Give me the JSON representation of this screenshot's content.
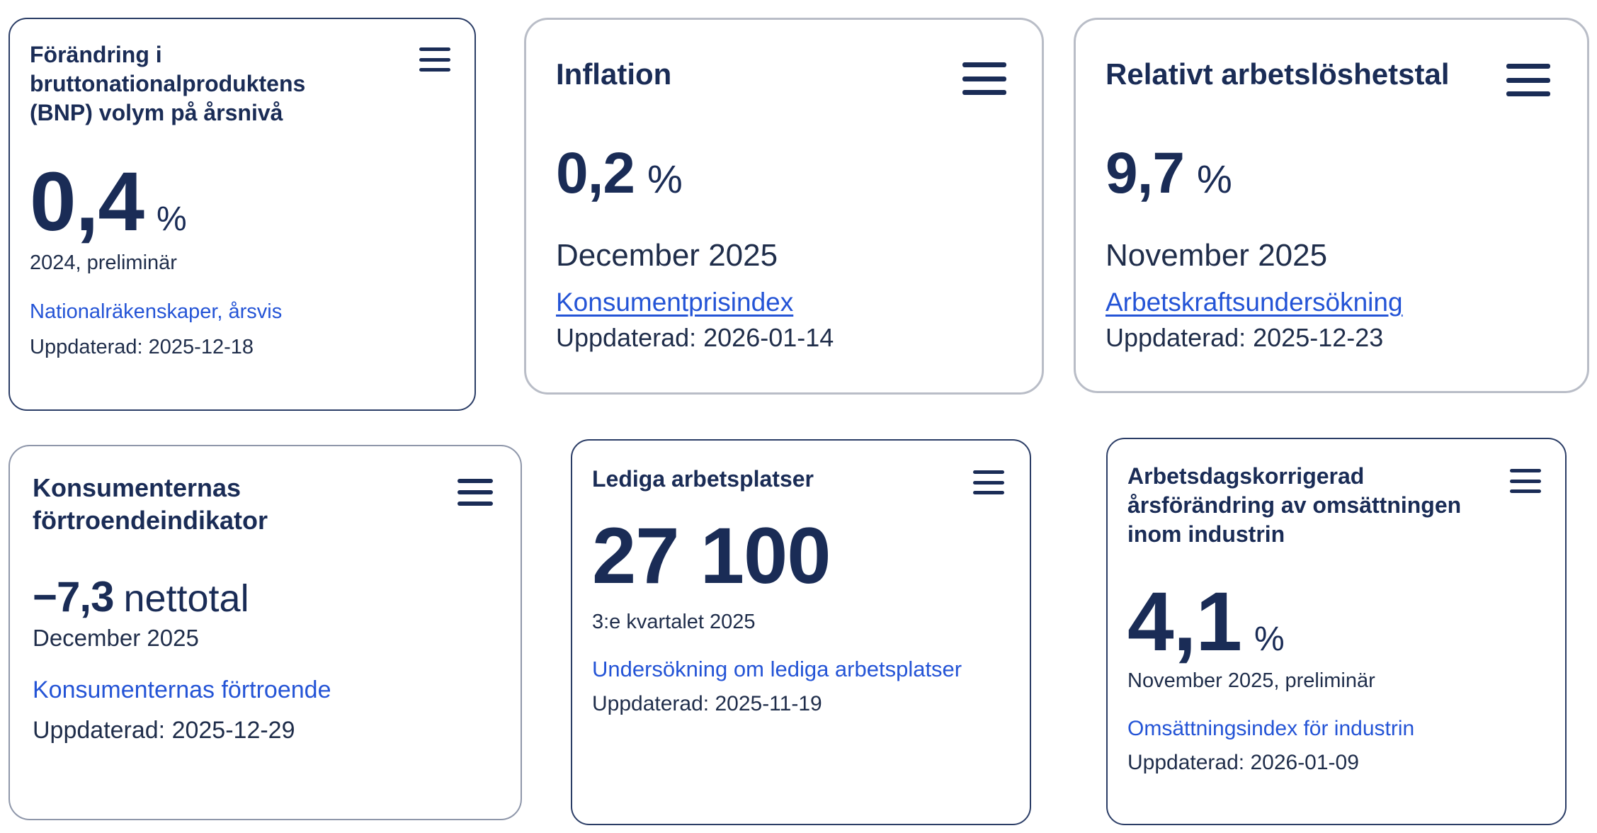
{
  "cards": [
    {
      "title_lines": [
        "Förändring i",
        "bruttonationalproduktens",
        "(BNP) volym på årsnivå"
      ],
      "value": "0,4",
      "unit": "%",
      "period": "2024, preliminär",
      "link": "Nationalräkenskaper, årsvis",
      "updated": "Uppdaterad: 2025-12-18"
    },
    {
      "title_lines": [
        "Inflation"
      ],
      "value": "0,2",
      "unit": "%",
      "period": "December 2025",
      "link": "Konsumentprisindex",
      "updated": "Uppdaterad: 2026-01-14"
    },
    {
      "title_lines": [
        "Relativt arbetslöshetstal"
      ],
      "value": "9,7",
      "unit": "%",
      "period": "November 2025",
      "link": "Arbetskraftsundersökning",
      "updated": "Uppdaterad: 2025-12-23"
    },
    {
      "title_lines": [
        "Konsumenternas",
        "förtroendeindikator"
      ],
      "value": "−7,3",
      "unit": "nettotal",
      "period": "December 2025",
      "link": "Konsumenternas förtroende",
      "updated": "Uppdaterad: 2025-12-29"
    },
    {
      "title_lines": [
        "Lediga arbetsplatser"
      ],
      "value": "27 100",
      "unit": "",
      "period": "3:e kvartalet 2025",
      "link": "Undersökning om lediga arbetsplatser",
      "updated": "Uppdaterad: 2025-11-19"
    },
    {
      "title_lines": [
        "Arbetsdagskorrigerad",
        "årsförändring av omsättningen",
        "inom industrin"
      ],
      "value": "4,1",
      "unit": "%",
      "period": "November 2025, preliminär",
      "link": "Omsättningsindex för industrin",
      "updated": "Uppdaterad: 2026-01-09"
    }
  ],
  "icons": {
    "menu": "hamburger-menu-icon"
  },
  "colors": {
    "navy": "#1a2c56",
    "link": "#2454d6",
    "border": "#b9bdc7"
  }
}
